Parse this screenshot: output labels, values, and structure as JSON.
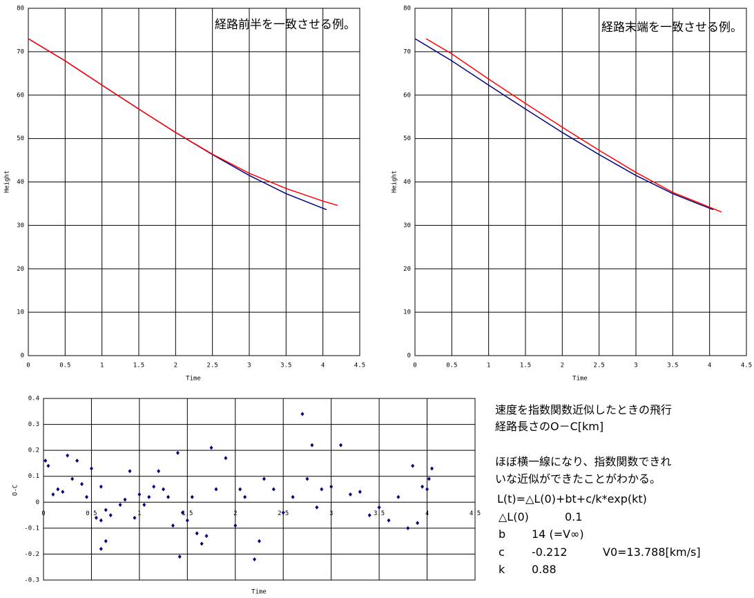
{
  "chart_data": [
    {
      "type": "line",
      "annotation": "経路前半を一致させる例。",
      "x_label": "Time",
      "y_label": "Height",
      "xlim": [
        0,
        4.5
      ],
      "xticks": [
        0,
        0.5,
        1,
        1.5,
        2,
        2.5,
        3,
        3.5,
        4,
        4.5
      ],
      "ylim": [
        0,
        80
      ],
      "yticks": [
        0,
        10,
        20,
        30,
        40,
        50,
        60,
        70,
        80
      ],
      "grid": true,
      "series": [
        {
          "color": "#000080",
          "x": [
            0,
            0.5,
            1,
            1.5,
            2,
            2.5,
            3,
            3.5,
            4.05
          ],
          "values": [
            73,
            67.9,
            62.3,
            56.8,
            51.4,
            46.3,
            41.5,
            37.3,
            33.6
          ]
        },
        {
          "color": "#ff0000",
          "x": [
            0,
            0.5,
            1,
            1.5,
            2,
            2.5,
            3,
            3.5,
            4,
            4.2
          ],
          "values": [
            73,
            67.9,
            62.3,
            56.8,
            51.4,
            46.4,
            42.0,
            38.5,
            35.6,
            34.6
          ]
        }
      ]
    },
    {
      "type": "line",
      "annotation": "経路末端を一致させる例。",
      "x_label": "Time",
      "y_label": "Height",
      "xlim": [
        0,
        4.5
      ],
      "xticks": [
        0,
        0.5,
        1,
        1.5,
        2,
        2.5,
        3,
        3.5,
        4,
        4.5
      ],
      "ylim": [
        0,
        80
      ],
      "yticks": [
        0,
        10,
        20,
        30,
        40,
        50,
        60,
        70,
        80
      ],
      "grid": true,
      "series": [
        {
          "color": "#000080",
          "x": [
            0,
            0.5,
            1,
            1.5,
            2,
            2.5,
            3,
            3.5,
            4.05
          ],
          "values": [
            73,
            67.9,
            62.3,
            56.8,
            51.4,
            46.3,
            41.5,
            37.3,
            33.6
          ]
        },
        {
          "color": "#ff0000",
          "x": [
            0.15,
            0.5,
            1,
            1.5,
            2,
            2.5,
            3,
            3.5,
            4.16
          ],
          "values": [
            73,
            69.5,
            63.7,
            58.1,
            52.6,
            47.3,
            42.2,
            37.6,
            33.1
          ]
        }
      ]
    },
    {
      "type": "scatter",
      "x_label": "Time",
      "y_label": "O-C",
      "xlim": [
        0,
        4.5
      ],
      "xticks": [
        0,
        0.5,
        1,
        1.5,
        2,
        2.5,
        3,
        3.5,
        4,
        4.5
      ],
      "ylim": [
        -0.3,
        0.4
      ],
      "yticks": [
        -0.3,
        -0.2,
        -0.1,
        0,
        0.1,
        0.2,
        0.3,
        0.4
      ],
      "grid": true,
      "series": [
        {
          "color": "#000080",
          "x": [
            0.02,
            0.05,
            0.1,
            0.15,
            0.2,
            0.25,
            0.3,
            0.35,
            0.4,
            0.45,
            0.5,
            0.55,
            0.6,
            0.65,
            0.6,
            0.6,
            0.65,
            0.7,
            0.8,
            0.85,
            0.9,
            0.95,
            1.0,
            1.05,
            1.1,
            1.15,
            1.2,
            1.25,
            1.3,
            1.35,
            1.4,
            1.42,
            1.45,
            1.5,
            1.55,
            1.6,
            1.65,
            1.7,
            1.75,
            1.8,
            1.9,
            2.0,
            2.05,
            2.1,
            2.2,
            2.25,
            2.3,
            2.4,
            2.5,
            2.6,
            2.7,
            2.75,
            2.8,
            2.85,
            2.9,
            3.0,
            3.1,
            3.2,
            3.3,
            3.4,
            3.5,
            3.6,
            3.7,
            3.8,
            3.85,
            3.9,
            3.95,
            4.0,
            4.05,
            4.02
          ],
          "values": [
            0.16,
            0.14,
            0.03,
            0.05,
            0.04,
            0.18,
            0.09,
            0.16,
            0.07,
            0.02,
            0.13,
            -0.06,
            -0.07,
            -0.03,
            0.06,
            -0.18,
            -0.15,
            -0.05,
            -0.01,
            0.01,
            0.12,
            -0.06,
            0.03,
            -0.01,
            0.02,
            0.06,
            0.12,
            0.05,
            0.02,
            -0.09,
            0.19,
            -0.21,
            -0.04,
            -0.07,
            0.02,
            -0.12,
            -0.16,
            -0.13,
            0.21,
            0.05,
            0.17,
            -0.09,
            0.05,
            0.02,
            -0.22,
            -0.15,
            0.09,
            0.05,
            -0.04,
            0.02,
            0.34,
            0.09,
            0.22,
            -0.02,
            0.05,
            0.06,
            0.22,
            0.03,
            0.04,
            -0.05,
            -0.02,
            -0.07,
            0.02,
            -0.1,
            0.14,
            -0.08,
            0.06,
            0.05,
            0.13,
            0.09
          ]
        }
      ]
    }
  ],
  "notes": {
    "heading": [
      "速度を指数関数近似したときの飛行",
      "経路長さのO－C[km]"
    ],
    "body": [
      "ほぼ横一線になり、指数関数できれ",
      "いな近似ができたことがわかる。"
    ],
    "formula": "L(t)=△L(0)+bt+c/k*exp(kt)",
    "params": [
      [
        "△L(0)",
        "0.1"
      ],
      [
        "b",
        "14 (=V∞)"
      ],
      [
        "c",
        "-0.212",
        "V0=13.788[km/s]"
      ],
      [
        "k",
        "0.88"
      ]
    ]
  }
}
